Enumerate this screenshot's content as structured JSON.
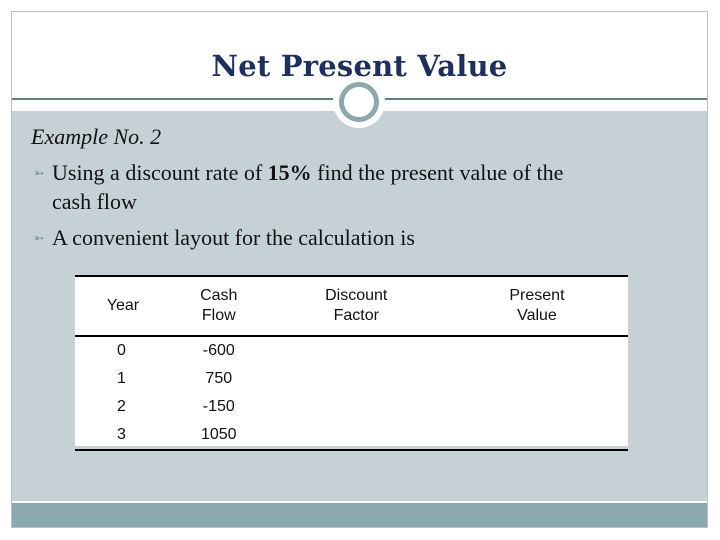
{
  "slide": {
    "title": "Net Present Value",
    "example": "Example No. 2",
    "bullets": [
      {
        "pre": "Using a discount rate of ",
        "bold": "15%",
        "post": " find the present value of the",
        "cont": "cash flow"
      },
      {
        "text": "A convenient layout for the calculation is"
      }
    ],
    "bullet_icon": "curved-arrow-bullet",
    "colors": {
      "title": "#1f2f5c",
      "content_bg": "#c6d1d6",
      "accent": "#8fa6ad",
      "footer": "#8aa8ae"
    }
  },
  "table": {
    "headers": [
      {
        "line1": "Year",
        "line2": ""
      },
      {
        "line1": "Cash",
        "line2": "Flow"
      },
      {
        "line1": "Discount",
        "line2": "Factor"
      },
      {
        "line1": "Present",
        "line2": "Value"
      }
    ],
    "rows": [
      {
        "year": "0",
        "cash": "-600",
        "factor": "",
        "pv": ""
      },
      {
        "year": "1",
        "cash": "750",
        "factor": "",
        "pv": ""
      },
      {
        "year": "2",
        "cash": "-150",
        "factor": "",
        "pv": ""
      },
      {
        "year": "3",
        "cash": "1050",
        "factor": "",
        "pv": ""
      }
    ]
  }
}
